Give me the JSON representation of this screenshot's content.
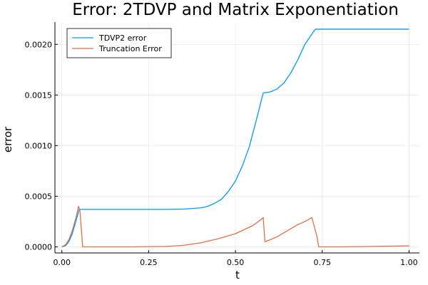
{
  "chart_data": {
    "type": "line",
    "title": "Error: 2TDVP and Matrix Exponentiation",
    "xlabel": "t",
    "ylabel": "error",
    "xlim": [
      -0.02,
      1.03
    ],
    "ylim": [
      -6e-05,
      0.00222
    ],
    "xticks": [
      0.0,
      0.25,
      0.5,
      0.75,
      1.0
    ],
    "xtick_labels": [
      "0.00",
      "0.25",
      "0.50",
      "0.75",
      "1.00"
    ],
    "yticks": [
      0.0,
      0.0005,
      0.001,
      0.0015,
      0.002
    ],
    "ytick_labels": [
      "0.0000",
      "0.0005",
      "0.0010",
      "0.0015",
      "0.0020"
    ],
    "grid": true,
    "legend_position": "top-left",
    "series": [
      {
        "name": "TDVP2 error",
        "color": "#009AFA",
        "x": [
          0.0,
          0.01,
          0.02,
          0.03,
          0.04,
          0.05,
          0.06,
          0.1,
          0.2,
          0.3,
          0.35,
          0.4,
          0.42,
          0.44,
          0.46,
          0.48,
          0.5,
          0.52,
          0.54,
          0.56,
          0.58,
          0.6,
          0.62,
          0.64,
          0.66,
          0.68,
          0.7,
          0.72,
          0.73,
          0.75,
          0.8,
          0.9,
          1.0
        ],
        "y": [
          0.0,
          1e-05,
          5e-05,
          0.00013,
          0.00025,
          0.00037,
          0.00037,
          0.00037,
          0.00037,
          0.00037,
          0.000373,
          0.000385,
          0.0004,
          0.00043,
          0.00047,
          0.00055,
          0.00065,
          0.0008,
          0.00099,
          0.00125,
          0.00152,
          0.00153,
          0.00156,
          0.00162,
          0.00172,
          0.00185,
          0.002,
          0.0021,
          0.00215,
          0.00215,
          0.00215,
          0.00215,
          0.00215
        ]
      },
      {
        "name": "Truncation Error",
        "color": "#E26F46",
        "x": [
          0.0,
          0.01,
          0.02,
          0.03,
          0.04,
          0.048,
          0.052,
          0.06,
          0.1,
          0.2,
          0.3,
          0.35,
          0.4,
          0.45,
          0.5,
          0.55,
          0.57,
          0.58,
          0.585,
          0.6,
          0.62,
          0.65,
          0.68,
          0.7,
          0.72,
          0.735,
          0.74,
          0.75,
          0.8,
          0.9,
          1.0
        ],
        "y": [
          0.0,
          2e-05,
          7e-05,
          0.00016,
          0.00028,
          0.0004,
          0.00036,
          0.0,
          0.0,
          0.0,
          4e-06,
          1.5e-05,
          4e-05,
          8e-05,
          0.00013,
          0.00021,
          0.00026,
          0.00029,
          5e-05,
          7e-05,
          0.0001,
          0.00016,
          0.00022,
          0.00025,
          0.00029,
          0.0001,
          0.0,
          0.0,
          0.0,
          4e-06,
          1e-05
        ]
      }
    ]
  }
}
